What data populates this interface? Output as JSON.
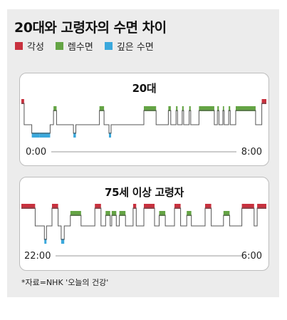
{
  "title": "20대와 고령자의 수면 차이",
  "legend": [
    {
      "label": "각성",
      "color": "#c8313e"
    },
    {
      "label": "렘수면",
      "color": "#64a444"
    },
    {
      "label": "깊은 수면",
      "color": "#3aa8dc"
    }
  ],
  "stage_colors": {
    "wake": "#c8313e",
    "rem": "#64a444",
    "deep": "#3aa8dc"
  },
  "line_color": "#555555",
  "source": "*자료=NHK '오늘의 건강'",
  "chart_data": [
    {
      "type": "hypnogram",
      "title": "20대",
      "x_start_label": "0:00",
      "x_end_label": "8:00",
      "x_range_hours": [
        0,
        8
      ],
      "stage_levels": [
        "wake",
        "rem",
        "light",
        "deep"
      ],
      "segments": [
        [
          0.0,
          0.09,
          "wake"
        ],
        [
          0.09,
          0.25,
          "light"
        ],
        [
          0.25,
          0.34,
          "light"
        ],
        [
          0.34,
          0.6,
          "deep"
        ],
        [
          0.6,
          0.94,
          "deep"
        ],
        [
          0.94,
          1.05,
          "light"
        ],
        [
          1.05,
          1.15,
          "rem"
        ],
        [
          1.15,
          1.3,
          "light"
        ],
        [
          1.3,
          1.4,
          "light"
        ],
        [
          1.4,
          1.7,
          "light"
        ],
        [
          1.7,
          1.78,
          "deep"
        ],
        [
          1.78,
          1.85,
          "light"
        ],
        [
          1.85,
          2.0,
          "light"
        ],
        [
          2.0,
          2.55,
          "light"
        ],
        [
          2.55,
          2.7,
          "rem"
        ],
        [
          2.7,
          2.86,
          "light"
        ],
        [
          2.86,
          2.93,
          "deep"
        ],
        [
          2.93,
          3.05,
          "light"
        ],
        [
          3.05,
          3.45,
          "light"
        ],
        [
          3.45,
          4.0,
          "light"
        ],
        [
          4.0,
          4.4,
          "rem"
        ],
        [
          4.4,
          4.7,
          "light"
        ],
        [
          4.7,
          4.8,
          "light"
        ],
        [
          4.8,
          4.88,
          "rem"
        ],
        [
          4.88,
          5.05,
          "light"
        ],
        [
          5.05,
          5.1,
          "rem"
        ],
        [
          5.1,
          5.25,
          "light"
        ],
        [
          5.25,
          5.3,
          "rem"
        ],
        [
          5.3,
          5.48,
          "light"
        ],
        [
          5.48,
          5.53,
          "rem"
        ],
        [
          5.53,
          5.8,
          "light"
        ],
        [
          5.8,
          6.3,
          "rem"
        ],
        [
          6.3,
          6.4,
          "light"
        ],
        [
          6.4,
          6.45,
          "rem"
        ],
        [
          6.45,
          6.58,
          "light"
        ],
        [
          6.58,
          6.62,
          "rem"
        ],
        [
          6.62,
          6.77,
          "light"
        ],
        [
          6.77,
          6.82,
          "rem"
        ],
        [
          6.82,
          7.0,
          "light"
        ],
        [
          7.0,
          7.65,
          "rem"
        ],
        [
          7.65,
          7.85,
          "light"
        ],
        [
          7.85,
          8.0,
          "wake"
        ]
      ]
    },
    {
      "type": "hypnogram",
      "title": "75세 이상 고령자",
      "x_start_label": "22:00",
      "x_end_label": "6:00",
      "x_range_hours": [
        0,
        8
      ],
      "stage_levels": [
        "wake",
        "rem",
        "light",
        "deep"
      ],
      "segments": [
        [
          0.0,
          0.45,
          "wake"
        ],
        [
          0.45,
          0.55,
          "light"
        ],
        [
          0.55,
          0.75,
          "light"
        ],
        [
          0.75,
          0.82,
          "deep"
        ],
        [
          0.82,
          1.0,
          "light"
        ],
        [
          1.0,
          1.2,
          "wake"
        ],
        [
          1.2,
          1.3,
          "light"
        ],
        [
          1.3,
          1.4,
          "deep"
        ],
        [
          1.4,
          1.6,
          "light"
        ],
        [
          1.6,
          1.95,
          "rem"
        ],
        [
          1.95,
          2.4,
          "light"
        ],
        [
          2.4,
          2.6,
          "wake"
        ],
        [
          2.6,
          2.75,
          "light"
        ],
        [
          2.75,
          2.9,
          "rem"
        ],
        [
          2.9,
          2.95,
          "light"
        ],
        [
          2.95,
          3.1,
          "rem"
        ],
        [
          3.1,
          3.2,
          "light"
        ],
        [
          3.2,
          3.4,
          "rem"
        ],
        [
          3.4,
          3.65,
          "light"
        ],
        [
          3.65,
          3.75,
          "wake"
        ],
        [
          3.75,
          4.0,
          "light"
        ],
        [
          4.0,
          4.35,
          "wake"
        ],
        [
          4.35,
          4.5,
          "light"
        ],
        [
          4.5,
          4.7,
          "rem"
        ],
        [
          4.7,
          5.0,
          "light"
        ],
        [
          5.0,
          5.2,
          "wake"
        ],
        [
          5.2,
          5.4,
          "light"
        ],
        [
          5.4,
          5.55,
          "rem"
        ],
        [
          5.55,
          6.0,
          "light"
        ],
        [
          6.0,
          6.2,
          "wake"
        ],
        [
          6.2,
          6.6,
          "light"
        ],
        [
          6.6,
          6.8,
          "rem"
        ],
        [
          6.8,
          7.2,
          "light"
        ],
        [
          7.2,
          7.6,
          "wake"
        ],
        [
          7.6,
          7.7,
          "light"
        ],
        [
          7.7,
          8.0,
          "wake"
        ]
      ]
    }
  ]
}
